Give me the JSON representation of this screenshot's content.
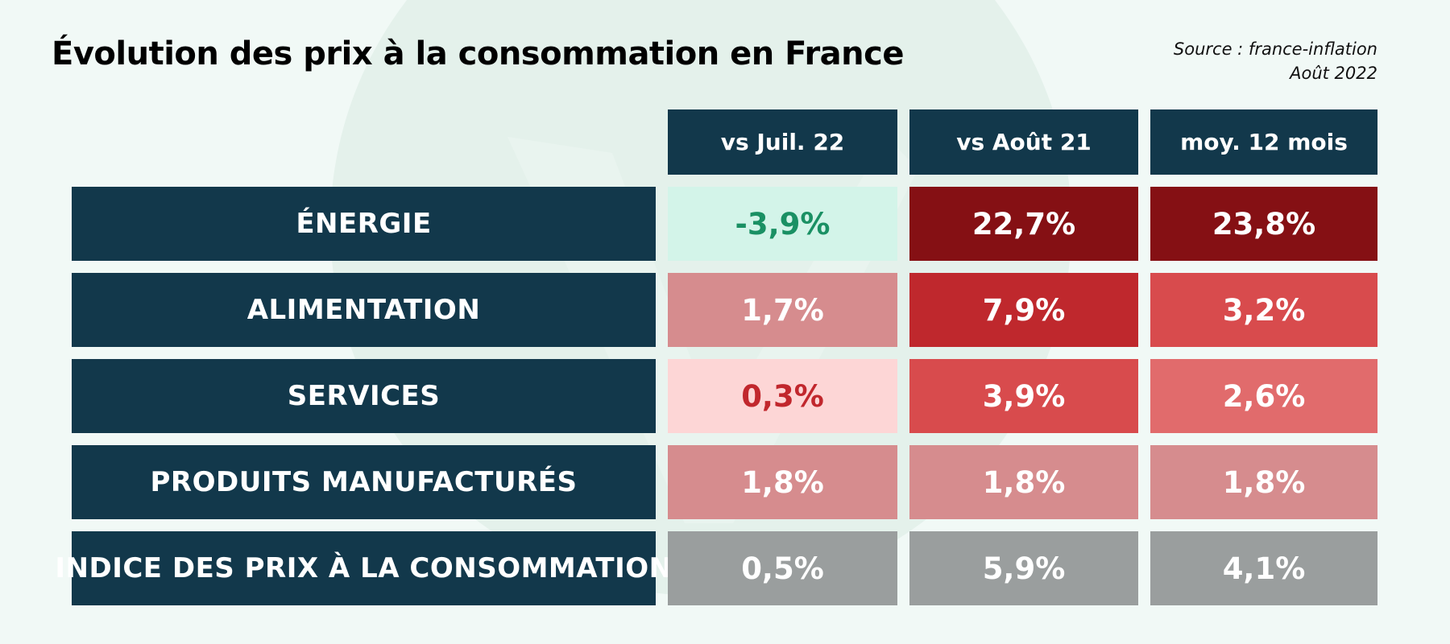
{
  "title": "Évolution des prix à la consommation en France",
  "source": {
    "line1": "Source : france-inflation",
    "line2": "Août 2022"
  },
  "chart_data": {
    "type": "table",
    "columns": [
      "vs Juil. 22",
      "vs Août 21",
      "moy. 12 mois"
    ],
    "rows": [
      {
        "label": "ÉNERGIE",
        "values": [
          "-3,9%",
          "22,7%",
          "23,8%"
        ],
        "cell_bg": [
          "#d3f4e9",
          "#851014",
          "#851014"
        ],
        "cell_fg": [
          "#1a9064",
          "#ffffff",
          "#ffffff"
        ]
      },
      {
        "label": "ALIMENTATION",
        "values": [
          "1,7%",
          "7,9%",
          "3,2%"
        ],
        "cell_bg": [
          "#d68c8e",
          "#bf282d",
          "#d84b4d"
        ],
        "cell_fg": [
          "#ffffff",
          "#ffffff",
          "#ffffff"
        ]
      },
      {
        "label": "SERVICES",
        "values": [
          "0,3%",
          "3,9%",
          "2,6%"
        ],
        "cell_bg": [
          "#fdd6d6",
          "#d84b4d",
          "#e16b6c"
        ],
        "cell_fg": [
          "#c1272d",
          "#ffffff",
          "#ffffff"
        ]
      },
      {
        "label": "PRODUITS MANUFACTURÉS",
        "values": [
          "1,8%",
          "1,8%",
          "1,8%"
        ],
        "cell_bg": [
          "#d68c8e",
          "#d68c8e",
          "#d68c8e"
        ],
        "cell_fg": [
          "#ffffff",
          "#ffffff",
          "#ffffff"
        ]
      },
      {
        "label": "INDICE DES PRIX À LA CONSOMMATION",
        "values": [
          "0,5%",
          "5,9%",
          "4,1%"
        ],
        "cell_bg": [
          "#9a9e9e",
          "#9a9e9e",
          "#9a9e9e"
        ],
        "cell_fg": [
          "#ffffff",
          "#ffffff",
          "#ffffff"
        ]
      }
    ]
  },
  "colors": {
    "label_bg": "#12384b",
    "page_bg": "#f1f9f6",
    "decor_circle": "#e4f1eb"
  }
}
